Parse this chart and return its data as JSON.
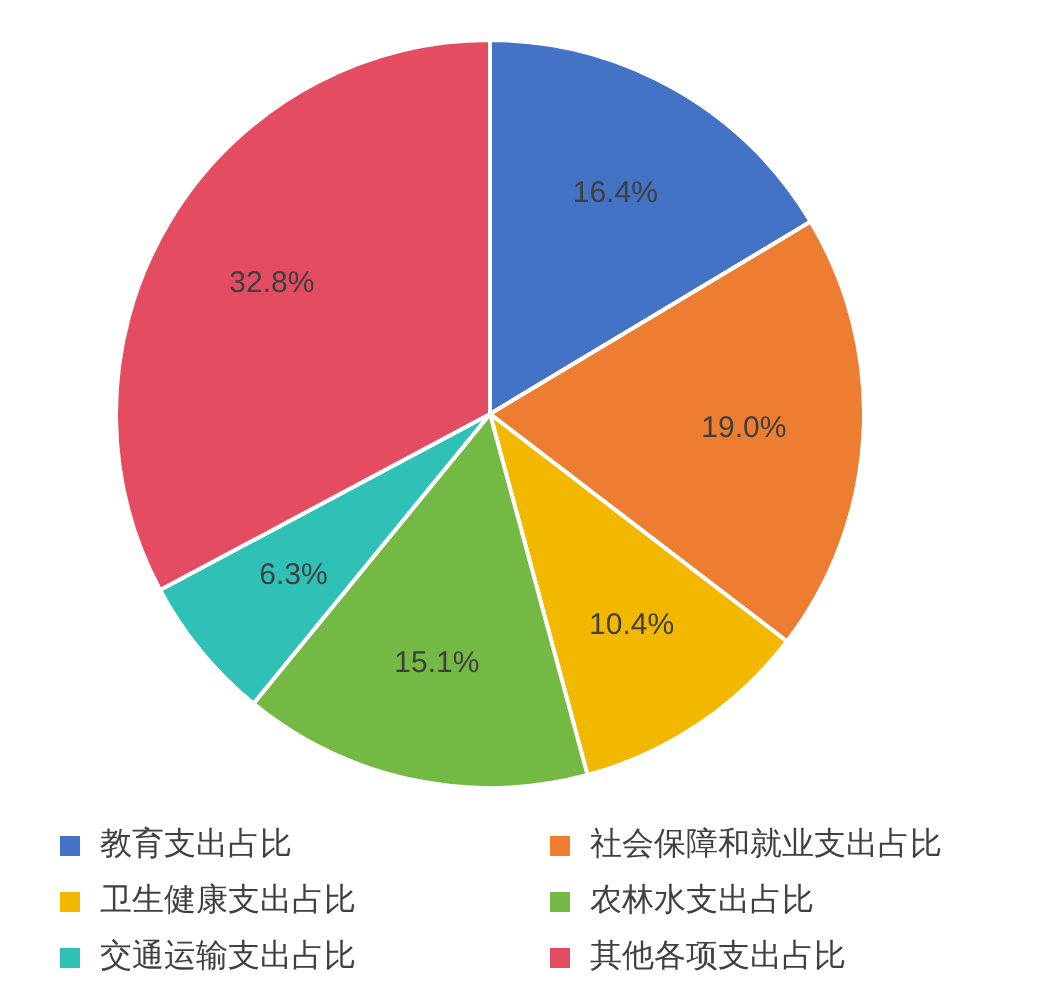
{
  "chart_data": {
    "type": "pie",
    "categories": [
      "教育支出占比",
      "社会保障和就业支出占比",
      "卫生健康支出占比",
      "农林水支出占比",
      "交通运输支出占比",
      "其他各项支出占比"
    ],
    "values": [
      16.4,
      19.0,
      10.4,
      15.1,
      6.3,
      32.8
    ],
    "colors": [
      "#4472c4",
      "#ed7d31",
      "#f2b800",
      "#74b944",
      "#2fc1b6",
      "#e34c61"
    ],
    "value_labels": [
      "16.4%",
      "19.0%",
      "10.4%",
      "15.1%",
      "6.3%",
      "32.8%"
    ],
    "legend": "bottom"
  }
}
